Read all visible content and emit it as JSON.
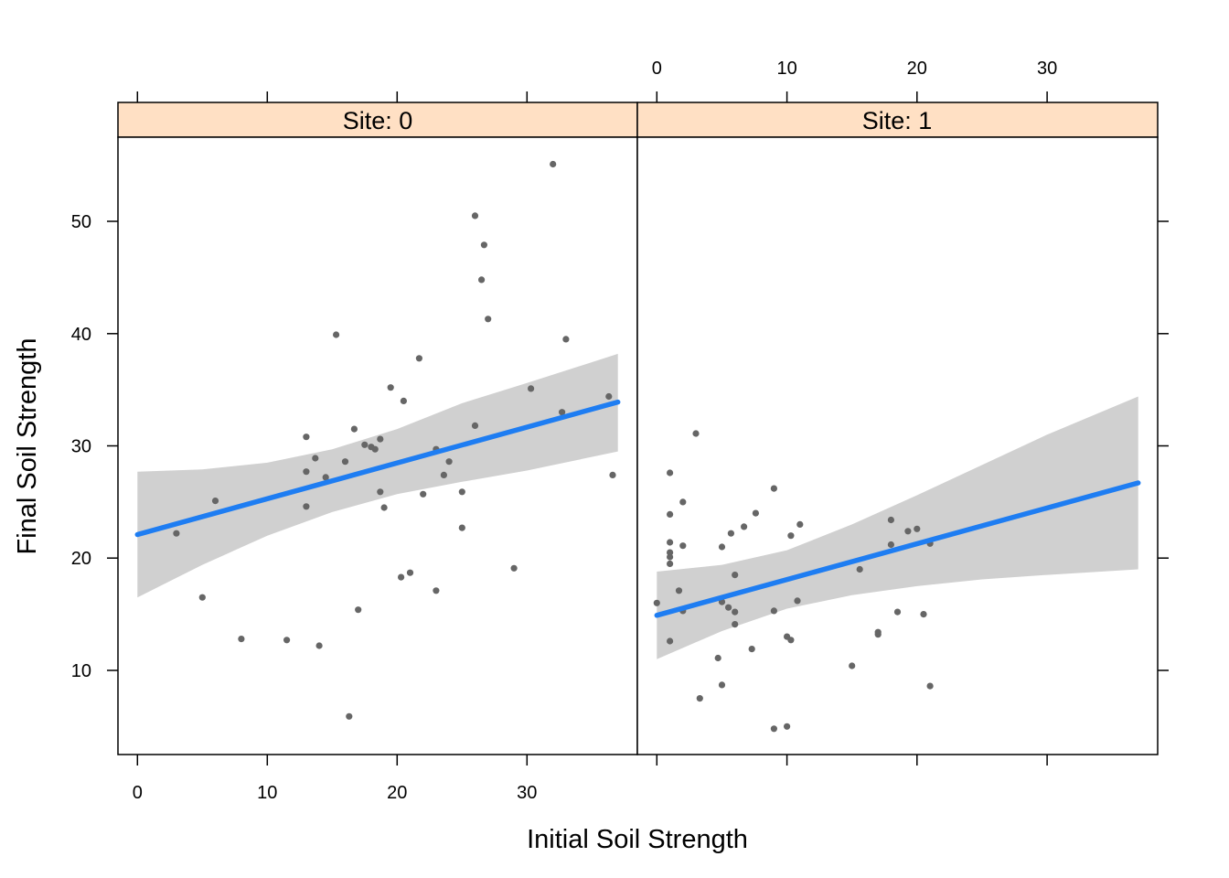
{
  "chart_data": {
    "type": "scatter",
    "xlabel": "Initial Soil Strength",
    "ylabel": "Final Soil Strength",
    "xlim": [
      -1.5,
      38.5
    ],
    "ylim": [
      2.5,
      57.5
    ],
    "x_ticks": [
      0,
      10,
      20,
      30
    ],
    "y_ticks": [
      10,
      20,
      30,
      40,
      50
    ],
    "bottom_tick_labels_panel": 0,
    "top_tick_labels_panel": 1,
    "strip_color": "#FFE0C4",
    "point_color": "#666666",
    "line_color": "#1E7DF2",
    "band_color": "#D0D0D0",
    "panels": [
      {
        "strip_label": "Site: 0",
        "points": [
          [
            3,
            22.2
          ],
          [
            5,
            16.5
          ],
          [
            6,
            25.1
          ],
          [
            8,
            12.8
          ],
          [
            11.5,
            12.7
          ],
          [
            13,
            30.8
          ],
          [
            13,
            27.7
          ],
          [
            13,
            24.6
          ],
          [
            13.7,
            28.9
          ],
          [
            14,
            12.2
          ],
          [
            14.5,
            27.2
          ],
          [
            15.3,
            39.9
          ],
          [
            16,
            28.6
          ],
          [
            16.3,
            5.9
          ],
          [
            16.7,
            31.5
          ],
          [
            17,
            15.4
          ],
          [
            17.5,
            30.1
          ],
          [
            18,
            29.9
          ],
          [
            18.3,
            29.7
          ],
          [
            18.7,
            30.6
          ],
          [
            18.7,
            25.9
          ],
          [
            19,
            24.5
          ],
          [
            19.5,
            35.2
          ],
          [
            20.3,
            18.3
          ],
          [
            20.5,
            34
          ],
          [
            21,
            18.7
          ],
          [
            21.7,
            37.8
          ],
          [
            22,
            25.7
          ],
          [
            23,
            29.7
          ],
          [
            23,
            17.1
          ],
          [
            23.6,
            27.4
          ],
          [
            24,
            28.6
          ],
          [
            25,
            25.9
          ],
          [
            25,
            22.7
          ],
          [
            26,
            50.5
          ],
          [
            26,
            31.8
          ],
          [
            26.5,
            44.8
          ],
          [
            26.7,
            47.9
          ],
          [
            27,
            41.3
          ],
          [
            29,
            19.1
          ],
          [
            30.3,
            35.1
          ],
          [
            32,
            55.1
          ],
          [
            32.7,
            33
          ],
          [
            33,
            39.5
          ],
          [
            36.3,
            34.4
          ],
          [
            36.6,
            27.4
          ]
        ],
        "fit_line": {
          "x": [
            0,
            37
          ],
          "y": [
            22.1,
            33.9
          ]
        },
        "band": {
          "x": [
            0,
            5,
            10,
            15,
            20,
            25,
            30,
            37
          ],
          "lower": [
            16.5,
            19.4,
            22.0,
            24.1,
            25.7,
            26.8,
            27.8,
            29.5
          ],
          "upper": [
            27.7,
            27.9,
            28.5,
            29.7,
            31.5,
            33.8,
            35.6,
            38.2
          ]
        }
      },
      {
        "strip_label": "Site: 1",
        "points": [
          [
            0,
            16
          ],
          [
            1,
            27.6
          ],
          [
            1,
            23.9
          ],
          [
            1,
            21.4
          ],
          [
            1,
            20.5
          ],
          [
            1,
            20.1
          ],
          [
            1,
            19.5
          ],
          [
            1,
            12.6
          ],
          [
            1.7,
            17.1
          ],
          [
            2,
            25
          ],
          [
            2,
            21.1
          ],
          [
            2,
            15.3
          ],
          [
            3,
            31.1
          ],
          [
            3.3,
            7.5
          ],
          [
            4.7,
            11.1
          ],
          [
            5,
            21
          ],
          [
            5,
            16.1
          ],
          [
            5,
            8.7
          ],
          [
            5.5,
            15.6
          ],
          [
            5.7,
            22.2
          ],
          [
            6,
            18.5
          ],
          [
            6,
            15.2
          ],
          [
            6,
            14.1
          ],
          [
            6.7,
            22.8
          ],
          [
            7.3,
            11.9
          ],
          [
            7.6,
            24
          ],
          [
            9,
            26.2
          ],
          [
            9,
            15.3
          ],
          [
            9,
            4.8
          ],
          [
            10,
            13
          ],
          [
            10,
            5
          ],
          [
            10.3,
            12.7
          ],
          [
            10.3,
            22
          ],
          [
            10.8,
            16.2
          ],
          [
            11,
            23
          ],
          [
            15,
            10.4
          ],
          [
            15.6,
            19
          ],
          [
            17,
            13.4
          ],
          [
            17,
            13.2
          ],
          [
            18,
            23.4
          ],
          [
            18,
            21.2
          ],
          [
            18.5,
            15.2
          ],
          [
            19.3,
            22.4
          ],
          [
            20,
            22.6
          ],
          [
            20.5,
            15
          ],
          [
            21,
            21.3
          ],
          [
            21,
            8.6
          ]
        ],
        "fit_line": {
          "x": [
            0,
            37
          ],
          "y": [
            14.9,
            26.7
          ]
        },
        "band": {
          "x": [
            0,
            5,
            10,
            15,
            20,
            25,
            30,
            37
          ],
          "lower": [
            11.0,
            13.5,
            15.5,
            16.7,
            17.5,
            18.1,
            18.5,
            19.0
          ],
          "upper": [
            18.8,
            19.4,
            20.7,
            23.0,
            25.6,
            28.3,
            31.0,
            34.4
          ]
        }
      }
    ]
  }
}
